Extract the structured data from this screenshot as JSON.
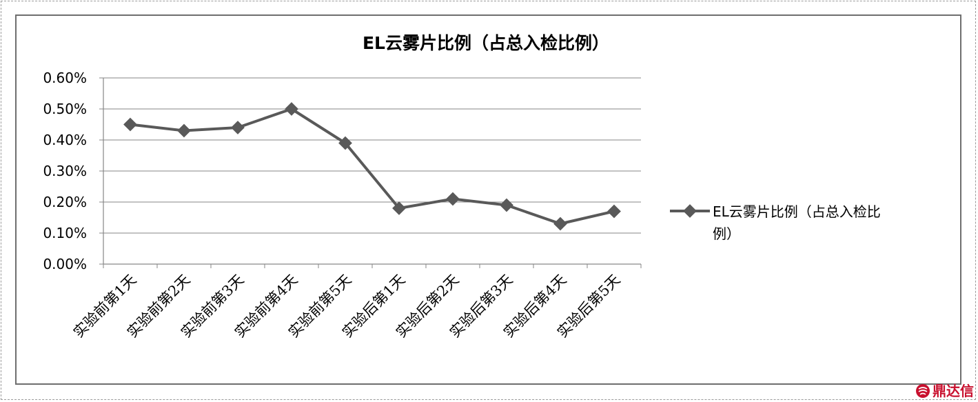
{
  "chart_data": {
    "type": "line",
    "title": "EL云雾片比例（占总入检比例）",
    "xlabel": "",
    "ylabel": "",
    "categories": [
      "实验前第1天",
      "实验前第2天",
      "实验前第3天",
      "实验前第4天",
      "实验前第5天",
      "实验后第1天",
      "实验后第2天",
      "实验后第3天",
      "实验后第4天",
      "实验后第5天"
    ],
    "series": [
      {
        "name": "EL云雾片比例（占总入检比例）",
        "values": [
          0.45,
          0.43,
          0.44,
          0.5,
          0.39,
          0.18,
          0.21,
          0.19,
          0.13,
          0.17
        ]
      }
    ],
    "ylim": [
      0,
      0.6
    ],
    "yticks": [
      "0.00%",
      "0.10%",
      "0.20%",
      "0.30%",
      "0.40%",
      "0.50%",
      "0.60%"
    ],
    "grid": true,
    "legend": {
      "placement": "right",
      "lines": [
        "EL云雾片比例（占总入检比",
        "例）"
      ]
    },
    "colors": {
      "series": "#595959",
      "grid": "#868686",
      "axis": "#868686",
      "text": "#000000"
    }
  },
  "watermark": {
    "text": "鼎达信",
    "color": "#c8102e"
  }
}
